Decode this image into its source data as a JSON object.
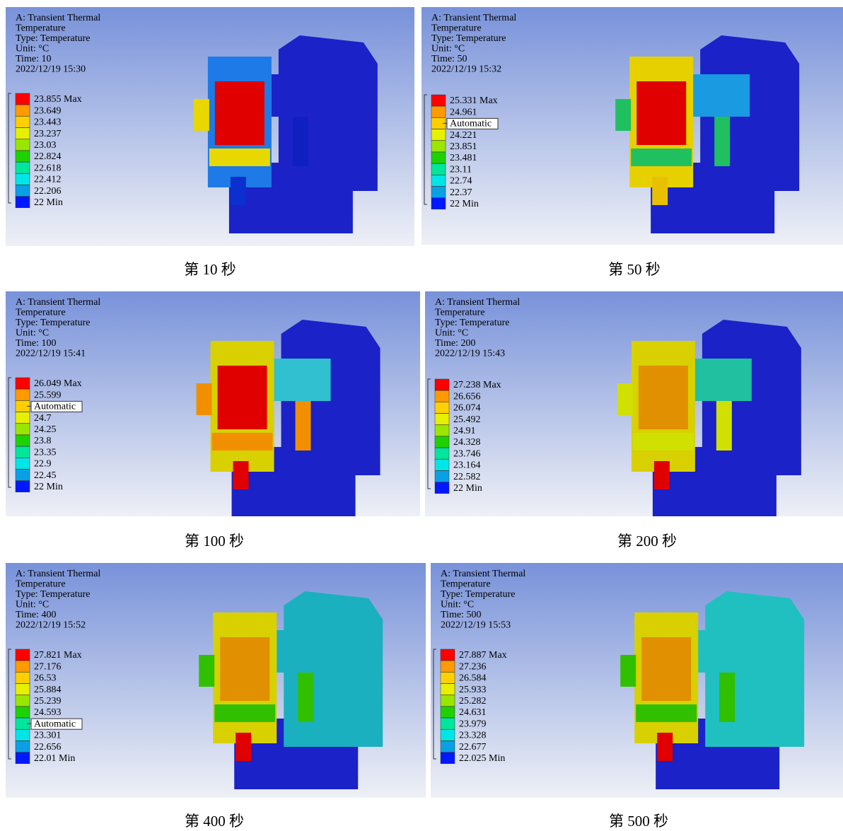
{
  "panels": [
    {
      "header": [
        "A: Transient Thermal",
        "Temperature",
        "Type: Temperature",
        "Unit: °C",
        "Time: 10",
        "2022/12/19 15:30"
      ],
      "legend": [
        "23.855 Max",
        "23.649",
        "23.443",
        "23.237",
        "23.03",
        "22.824",
        "22.618",
        "22.412",
        "22.206",
        "22 Min"
      ],
      "caption": "第 10 秒"
    },
    {
      "header": [
        "A: Transient Thermal",
        "Temperature",
        "Type: Temperature",
        "Unit: °C",
        "Time: 50",
        "2022/12/19 15:32"
      ],
      "legend": [
        "25.331 Max",
        "24.961",
        "Automatic",
        "24.221",
        "23.851",
        "23.481",
        "23.11",
        "22.74",
        "22.37",
        "22 Min"
      ],
      "caption": "第 50 秒"
    },
    {
      "header": [
        "A: Transient Thermal",
        "Temperature",
        "Type: Temperature",
        "Unit: °C",
        "Time: 100",
        "2022/12/19 15:41"
      ],
      "legend": [
        "26.049 Max",
        "25.599",
        "Automatic",
        "24.7",
        "24.25",
        "23.8",
        "23.35",
        "22.9",
        "22.45",
        "22 Min"
      ],
      "caption": "第 100 秒"
    },
    {
      "header": [
        "A: Transient Thermal",
        "Temperature",
        "Type: Temperature",
        "Unit: °C",
        "Time: 200",
        "2022/12/19 15:43"
      ],
      "legend": [
        "27.238 Max",
        "26.656",
        "26.074",
        "25.492",
        "24.91",
        "24.328",
        "23.746",
        "23.164",
        "22.582",
        "22 Min"
      ],
      "caption": "第 200 秒"
    },
    {
      "header": [
        "A: Transient Thermal",
        "Temperature",
        "Type: Temperature",
        "Unit: °C",
        "Time: 400",
        "2022/12/19 15:52"
      ],
      "legend": [
        "27.821 Max",
        "27.176",
        "26.53",
        "25.884",
        "25.239",
        "24.593",
        "Automatic",
        "23.301",
        "22.656",
        "22.01 Min"
      ],
      "caption": "第 400 秒"
    },
    {
      "header": [
        "A: Transient Thermal",
        "Temperature",
        "Type: Temperature",
        "Unit: °C",
        "Time: 500",
        "2022/12/19 15:53"
      ],
      "legend": [
        "27.887 Max",
        "27.236",
        "26.584",
        "25.933",
        "25.282",
        "24.631",
        "23.979",
        "23.328",
        "22.677",
        "22.025 Min"
      ],
      "caption": "第 500 秒"
    }
  ]
}
